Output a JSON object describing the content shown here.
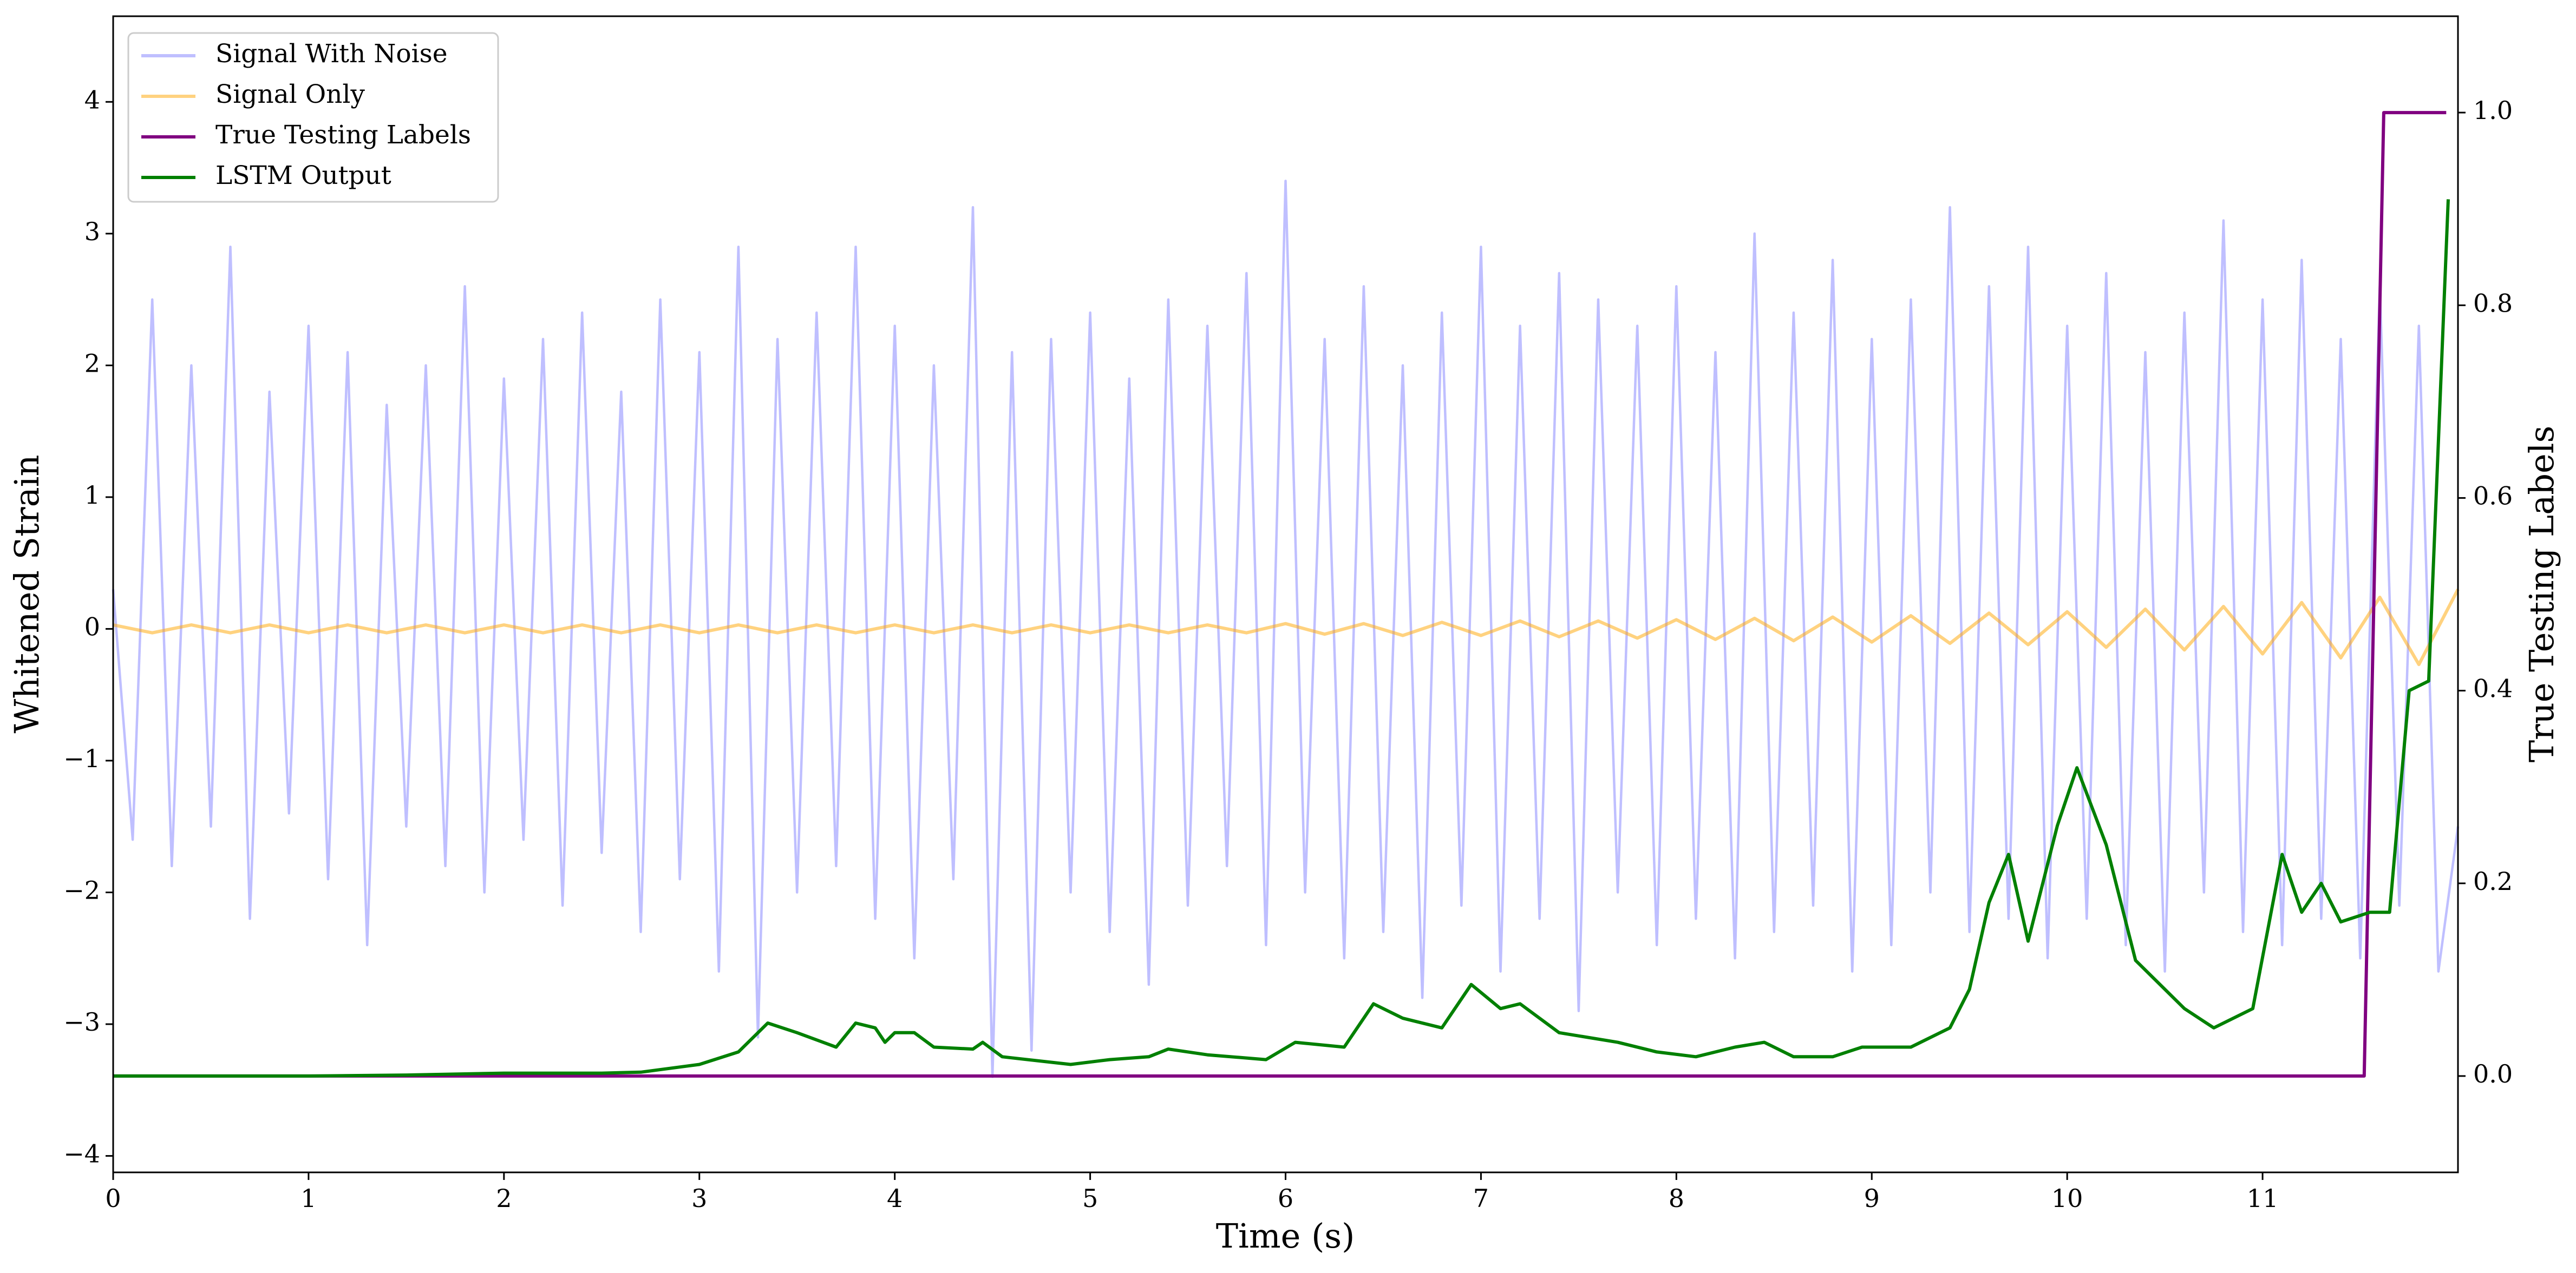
{
  "chart_data": {
    "type": "line",
    "x_label": "Time (s)",
    "y_label": "Whitened Strain",
    "y2_label": "True Testing Labels",
    "xlim": [
      0,
      12
    ],
    "xticks": [
      0,
      1,
      2,
      3,
      4,
      5,
      6,
      7,
      8,
      9,
      10,
      11
    ],
    "ylim": [
      -4.125,
      4.65
    ],
    "yticks": [
      {
        "value": -4,
        "label": "−4"
      },
      {
        "value": -3,
        "label": "−3"
      },
      {
        "value": -2,
        "label": "−2"
      },
      {
        "value": -1,
        "label": "−1"
      },
      0,
      1,
      2,
      3,
      4
    ],
    "y2lim": [
      -0.1,
      1.1
    ],
    "y2ticks": [
      {
        "value": 0,
        "label": "0.0"
      },
      {
        "value": 0.2,
        "label": "0.2"
      },
      {
        "value": 0.4,
        "label": "0.4"
      },
      {
        "value": 0.6,
        "label": "0.6"
      },
      {
        "value": 0.8,
        "label": "0.8"
      },
      {
        "value": 1,
        "label": "1.0"
      }
    ],
    "legend": "upper left",
    "series": [
      {
        "name": "Signal With Noise",
        "color": "#7f7fff",
        "x": [
          0,
          0.1,
          0.2,
          0.3,
          0.4,
          0.5,
          0.6,
          0.7,
          0.8,
          0.9,
          1,
          1.1,
          1.2,
          1.3,
          1.4,
          1.5,
          1.6,
          1.7,
          1.8,
          1.9,
          2,
          2.1,
          2.2,
          2.3,
          2.4,
          2.5,
          2.6,
          2.7,
          2.8,
          2.9,
          3,
          3.1,
          3.2,
          3.3,
          3.4,
          3.5,
          3.6,
          3.7,
          3.8,
          3.9,
          4,
          4.1,
          4.2,
          4.3,
          4.4,
          4.5,
          4.6,
          4.7,
          4.8,
          4.9,
          5,
          5.1,
          5.2,
          5.3,
          5.4,
          5.5,
          5.6,
          5.7,
          5.8,
          5.9,
          6,
          6.1,
          6.2,
          6.3,
          6.4,
          6.5,
          6.6,
          6.7,
          6.8,
          6.9,
          7,
          7.1,
          7.2,
          7.3,
          7.4,
          7.5,
          7.6,
          7.7,
          7.8,
          7.9,
          8,
          8.1,
          8.2,
          8.3,
          8.4,
          8.5,
          8.6,
          8.7,
          8.8,
          8.9,
          9,
          9.1,
          9.2,
          9.3,
          9.4,
          9.5,
          9.6,
          9.7,
          9.8,
          9.9,
          10,
          10.1,
          10.2,
          10.3,
          10.4,
          10.5,
          10.6,
          10.7,
          10.8,
          10.9,
          11,
          11.1,
          11.2,
          11.3,
          11.4,
          11.5,
          11.6,
          11.7,
          11.8,
          11.9,
          12
        ],
        "values": [
          0.3,
          -1.6,
          2.5,
          -1.8,
          2.0,
          -1.5,
          2.9,
          -2.2,
          1.8,
          -1.4,
          2.3,
          -1.9,
          2.1,
          -2.4,
          1.7,
          -1.5,
          2.0,
          -1.8,
          2.6,
          -2.0,
          1.9,
          -1.6,
          2.2,
          -2.1,
          2.4,
          -1.7,
          1.8,
          -2.3,
          2.5,
          -1.9,
          2.1,
          -2.6,
          2.9,
          -3.1,
          2.2,
          -2.0,
          2.4,
          -1.8,
          2.9,
          -2.2,
          2.3,
          -2.5,
          2.0,
          -1.9,
          3.2,
          -3.4,
          2.1,
          -3.2,
          2.2,
          -2.0,
          2.4,
          -2.3,
          1.9,
          -2.7,
          2.5,
          -2.1,
          2.3,
          -1.8,
          2.7,
          -2.4,
          3.4,
          -2.0,
          2.2,
          -2.5,
          2.6,
          -2.3,
          2.0,
          -2.8,
          2.4,
          -2.1,
          2.9,
          -2.6,
          2.3,
          -2.2,
          2.7,
          -2.9,
          2.5,
          -2.0,
          2.3,
          -2.4,
          2.6,
          -2.2,
          2.1,
          -2.5,
          3.0,
          -2.3,
          2.4,
          -2.1,
          2.8,
          -2.6,
          2.2,
          -2.4,
          2.5,
          -2.0,
          3.2,
          -2.3,
          2.6,
          -2.2,
          2.9,
          -2.5,
          2.3,
          -2.2,
          2.7,
          -2.4,
          2.1,
          -2.6,
          2.4,
          -2.0,
          3.1,
          -2.3,
          2.5,
          -2.4,
          2.8,
          -2.2,
          2.2,
          -2.5,
          2.6,
          -2.1,
          2.3,
          -2.6,
          -1.5
        ]
      },
      {
        "name": "Signal Only",
        "color": "#ffa500",
        "x": [
          0,
          0.2,
          0.4,
          0.6,
          0.8,
          1,
          1.2,
          1.4,
          1.6,
          1.8,
          2,
          2.2,
          2.4,
          2.6,
          2.8,
          3,
          3.2,
          3.4,
          3.6,
          3.8,
          4,
          4.2,
          4.4,
          4.6,
          4.8,
          5,
          5.2,
          5.4,
          5.6,
          5.8,
          6,
          6.2,
          6.4,
          6.6,
          6.8,
          7,
          7.2,
          7.4,
          7.6,
          7.8,
          8,
          8.2,
          8.4,
          8.6,
          8.8,
          9,
          9.2,
          9.4,
          9.6,
          9.8,
          10,
          10.2,
          10.4,
          10.6,
          10.8,
          11,
          11.2,
          11.4,
          11.6,
          11.8,
          12
        ],
        "values": [
          0.03,
          -0.03,
          0.03,
          -0.03,
          0.03,
          -0.03,
          0.03,
          -0.03,
          0.03,
          -0.03,
          0.03,
          -0.03,
          0.03,
          -0.03,
          0.03,
          -0.03,
          0.03,
          -0.03,
          0.03,
          -0.03,
          0.03,
          -0.03,
          0.03,
          -0.03,
          0.03,
          -0.03,
          0.03,
          -0.03,
          0.03,
          -0.03,
          0.04,
          -0.04,
          0.04,
          -0.05,
          0.05,
          -0.05,
          0.06,
          -0.06,
          0.06,
          -0.07,
          0.07,
          -0.08,
          0.08,
          -0.09,
          0.09,
          -0.1,
          0.1,
          -0.11,
          0.12,
          -0.12,
          0.13,
          -0.14,
          0.15,
          -0.16,
          0.17,
          -0.19,
          0.2,
          -0.22,
          0.24,
          -0.27,
          0.3
        ]
      },
      {
        "name": "True Testing Labels",
        "color": "#800080",
        "axis": "y2",
        "x": [
          0,
          11.52,
          11.62,
          11.94
        ],
        "values": [
          0,
          0,
          1,
          1
        ]
      },
      {
        "name": "LSTM Output",
        "color": "#008000",
        "axis": "y2",
        "x": [
          0,
          0.5,
          1,
          1.5,
          2,
          2.5,
          2.7,
          3,
          3.2,
          3.35,
          3.5,
          3.7,
          3.8,
          3.9,
          3.95,
          4,
          4.1,
          4.2,
          4.4,
          4.45,
          4.55,
          4.9,
          5.1,
          5.3,
          5.4,
          5.6,
          5.9,
          6.05,
          6.3,
          6.45,
          6.6,
          6.8,
          6.95,
          7.1,
          7.2,
          7.4,
          7.7,
          7.9,
          8.1,
          8.3,
          8.45,
          8.6,
          8.8,
          8.95,
          9.2,
          9.4,
          9.5,
          9.6,
          9.7,
          9.8,
          9.95,
          10.05,
          10.2,
          10.35,
          10.6,
          10.75,
          10.95,
          11.1,
          11.2,
          11.3,
          11.4,
          11.55,
          11.65,
          11.75,
          11.85,
          11.95
        ],
        "values": [
          0,
          0,
          0,
          0.001,
          0.003,
          0.003,
          0.004,
          0.012,
          0.025,
          0.055,
          0.045,
          0.03,
          0.055,
          0.05,
          0.035,
          0.045,
          0.045,
          0.03,
          0.028,
          0.035,
          0.02,
          0.012,
          0.017,
          0.02,
          0.028,
          0.022,
          0.017,
          0.035,
          0.03,
          0.075,
          0.06,
          0.05,
          0.095,
          0.07,
          0.075,
          0.045,
          0.035,
          0.025,
          0.02,
          0.03,
          0.035,
          0.02,
          0.02,
          0.03,
          0.03,
          0.05,
          0.09,
          0.18,
          0.23,
          0.14,
          0.26,
          0.32,
          0.24,
          0.12,
          0.07,
          0.05,
          0.07,
          0.23,
          0.17,
          0.2,
          0.16,
          0.17,
          0.17,
          0.4,
          0.41,
          0.91
        ]
      }
    ]
  }
}
